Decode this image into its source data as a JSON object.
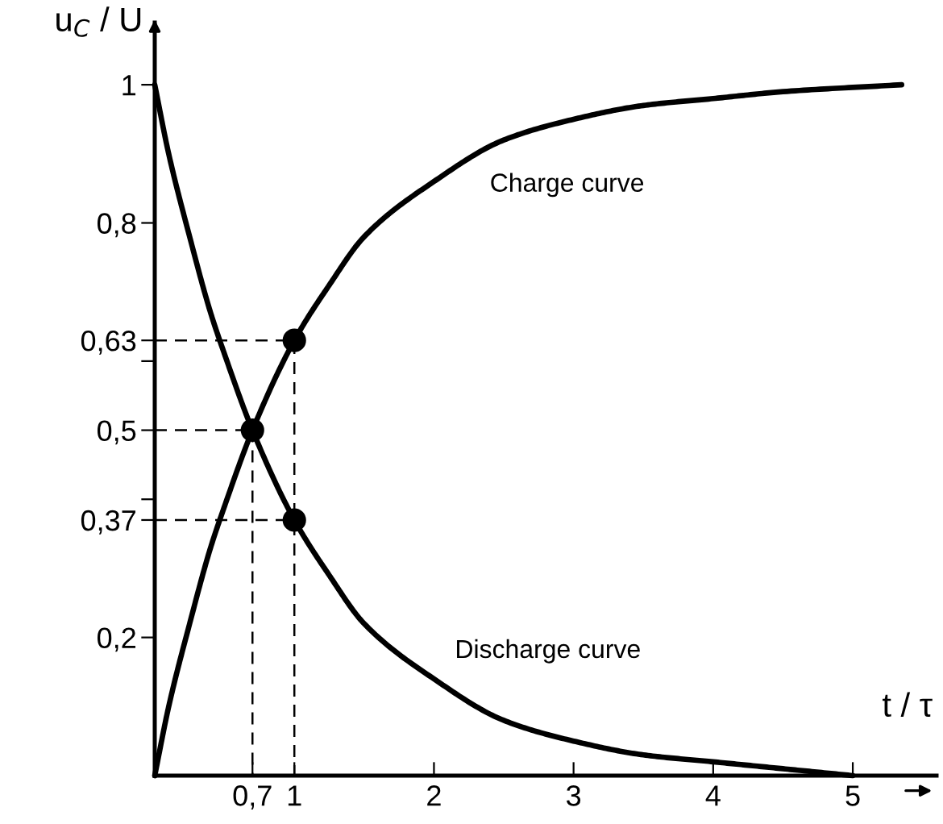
{
  "chart_data": {
    "type": "line",
    "xlabel": "t / τ",
    "ylabel": "u$_{C}$ / U",
    "xlim": [
      0,
      5.6
    ],
    "ylim": [
      0,
      1.09
    ],
    "xticks": [
      {
        "value": 0.7,
        "label": "0,7"
      },
      1,
      2,
      3,
      4,
      5
    ],
    "yticks": [
      {
        "value": 0.2,
        "label": "0,2"
      },
      {
        "value": 0.37,
        "label": "0,37"
      },
      {
        "value": 0.4,
        "label": null
      },
      {
        "value": 0.5,
        "label": "0,5"
      },
      {
        "value": 0.6,
        "label": null
      },
      {
        "value": 0.63,
        "label": "0,63"
      },
      {
        "value": 0.8,
        "label": "0,8"
      },
      1
    ],
    "grid": false,
    "legend": false,
    "series": [
      {
        "name": "Charge curve",
        "color": "#000000",
        "x": [
          0,
          0.1,
          0.25,
          0.4,
          0.5,
          0.7,
          1,
          1.25,
          1.5,
          2,
          2.5,
          3,
          3.5,
          4,
          4.5,
          5.35
        ],
        "values": [
          0,
          0.1,
          0.22,
          0.33,
          0.39,
          0.5,
          0.63,
          0.71,
          0.78,
          0.86,
          0.92,
          0.95,
          0.97,
          0.98,
          0.99,
          1.0
        ]
      },
      {
        "name": "Discharge curve",
        "color": "#000000",
        "x": [
          0,
          0.1,
          0.25,
          0.4,
          0.5,
          0.7,
          1,
          1.25,
          1.5,
          2,
          2.5,
          3,
          3.5,
          4,
          4.5,
          5
        ],
        "values": [
          1,
          0.9,
          0.78,
          0.67,
          0.61,
          0.5,
          0.37,
          0.29,
          0.22,
          0.14,
          0.08,
          0.05,
          0.03,
          0.02,
          0.01,
          0
        ]
      },
      {
        "type": "line",
        "line_style": "dashed",
        "color": "#000000",
        "x": [
          0,
          1,
          1
        ],
        "values": [
          0.63,
          0.63,
          0
        ]
      },
      {
        "type": "line",
        "line_style": "dashed",
        "color": "#000000",
        "x": [
          0,
          0.7
        ],
        "values": [
          0.5,
          0.5
        ]
      },
      {
        "type": "line",
        "line_style": "dashed",
        "color": "#000000",
        "x": [
          0.7,
          0.7
        ],
        "values": [
          0.5,
          0
        ]
      },
      {
        "type": "line",
        "line_style": "dashed",
        "color": "#000000",
        "x": [
          0,
          1
        ],
        "values": [
          0.37,
          0.37
        ]
      },
      {
        "type": "scatter",
        "marker": "circle",
        "color": "#000000",
        "x": [
          1,
          0.7,
          1
        ],
        "values": [
          0.63,
          0.5,
          0.37
        ]
      }
    ]
  }
}
